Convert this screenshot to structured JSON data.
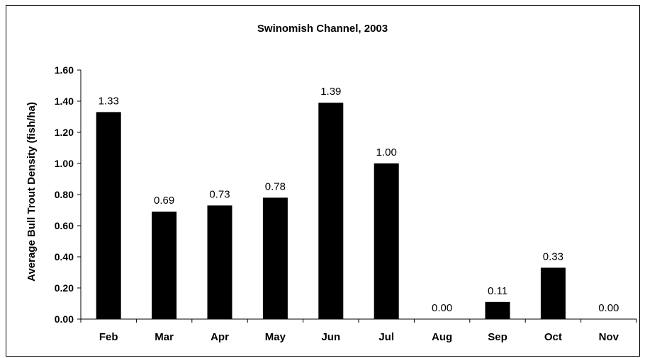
{
  "chart_data": {
    "type": "bar",
    "title": "Swinomish Channel, 2003",
    "xlabel": "",
    "ylabel": "Average Bull Trout Density (fish/ha)",
    "categories": [
      "Feb",
      "Mar",
      "Apr",
      "May",
      "Jun",
      "Jul",
      "Aug",
      "Sep",
      "Oct",
      "Nov"
    ],
    "values": [
      1.33,
      0.69,
      0.73,
      0.78,
      1.39,
      1.0,
      0.0,
      0.11,
      0.33,
      0.0
    ],
    "data_labels": [
      "1.33",
      "0.69",
      "0.73",
      "0.78",
      "1.39",
      "1.00",
      "0.00",
      "0.11",
      "0.33",
      "0.00"
    ],
    "ylim": [
      0,
      1.6
    ],
    "yticks": [
      0,
      0.2,
      0.4,
      0.6,
      0.8,
      1.0,
      1.2,
      1.4,
      1.6
    ],
    "ytick_labels": [
      "0.00",
      "0.20",
      "0.40",
      "0.60",
      "0.80",
      "1.00",
      "1.20",
      "1.40",
      "1.60"
    ],
    "grid": false,
    "legend": "none",
    "bar_color": "#000000"
  }
}
